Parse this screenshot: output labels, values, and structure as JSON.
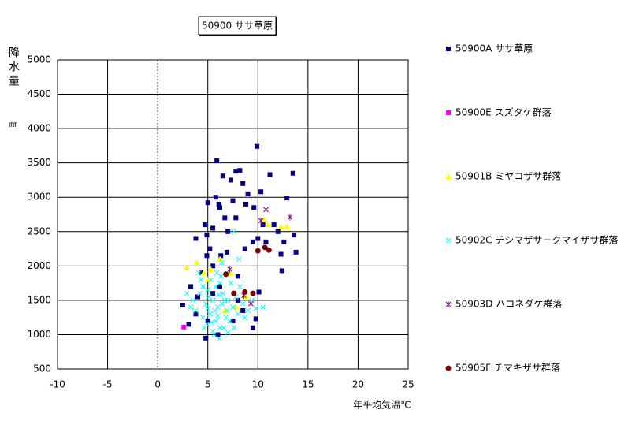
{
  "chart_data": {
    "type": "scatter",
    "title": "50900 ササ草原",
    "y_label": "降水量",
    "y_unit": "㎜",
    "x_label": "年平均気温℃",
    "xlim": [
      -10,
      25
    ],
    "xticks": [
      -10,
      -5,
      0,
      5,
      10,
      15,
      20,
      25
    ],
    "ylim": [
      500,
      5000
    ],
    "yticks": [
      500,
      1000,
      1500,
      2000,
      2500,
      3000,
      3500,
      4000,
      4500,
      5000
    ],
    "grid": true,
    "legend": "right",
    "series": [
      {
        "name": "50900A ササ草原",
        "color": "#000080",
        "marker": "square",
        "x": [
          13.5,
          11.2,
          12.9,
          9.9,
          5.9,
          7.8,
          8.2,
          6.5,
          7.3,
          8.5,
          9.0,
          10.3,
          5.0,
          6.1,
          7.5,
          8.8,
          9.6,
          4.7,
          5.5,
          6.7,
          7.8,
          10.5,
          11.6,
          12.0,
          13.6,
          12.6,
          13.8,
          12.3,
          12.4,
          10.0,
          10.8,
          9.5,
          8.7,
          4.9,
          3.8,
          5.2,
          4.9,
          6.3,
          6.9,
          5.5,
          4.4,
          6.2,
          5.5,
          4.0,
          2.5,
          3.8,
          5.0,
          6.0,
          4.8,
          7.5,
          8.5,
          9.5,
          9.8,
          8.0,
          10.1,
          3.1,
          3.3,
          8.0,
          7.0,
          6.2,
          5.8
        ],
        "values": [
          3350,
          3330,
          2990,
          3740,
          3530,
          3380,
          3390,
          3310,
          3250,
          3200,
          3050,
          3080,
          2920,
          2900,
          2950,
          2900,
          2850,
          2600,
          2550,
          2700,
          2700,
          2600,
          2600,
          2500,
          2450,
          2350,
          2200,
          2170,
          1930,
          2400,
          2350,
          2350,
          2250,
          2450,
          2400,
          2250,
          2150,
          2150,
          2200,
          2000,
          1900,
          1700,
          1600,
          1550,
          1430,
          1300,
          1200,
          1000,
          950,
          1200,
          1350,
          1100,
          1230,
          1500,
          1620,
          1150,
          1700,
          1850,
          2500,
          2850,
          3000
        ]
      },
      {
        "name": "50900E スズタケ群落",
        "color": "#ff00ff",
        "marker": "square",
        "x": [
          2.6
        ],
        "values": [
          1110
        ]
      },
      {
        "name": "50901B ミヤコザサ群落",
        "color": "#ffff00",
        "marker": "triangle",
        "x": [
          2.9,
          3.9,
          4.6,
          5.3,
          6.2,
          7.3,
          10.6,
          11.0,
          12.3,
          12.9,
          5.0,
          7.8,
          8.8,
          6.7
        ],
        "values": [
          1980,
          2050,
          1900,
          1950,
          2100,
          1900,
          2680,
          2600,
          2570,
          2570,
          1800,
          1400,
          1550,
          1350
        ]
      },
      {
        "name": "50902C チシマザサ－クマイザサ群落",
        "color": "#00ffff",
        "marker": "cross",
        "x": [
          4.5,
          5.0,
          5.5,
          6.0,
          5.2,
          4.8,
          5.8,
          6.2,
          5.5,
          6.5,
          7.0,
          7.5,
          8.0,
          6.8,
          5.3,
          4.2,
          3.5,
          3.8,
          4.5,
          4.9,
          5.6,
          6.1,
          6.6,
          7.2,
          7.8,
          8.5,
          9.0,
          9.4,
          8.2,
          7.3,
          6.3,
          5.9,
          4.3,
          3.3,
          2.9,
          5.1,
          5.7,
          6.4,
          6.9,
          7.6,
          8.7,
          9.8,
          10.5,
          4.6,
          5.4,
          6.0,
          6.7,
          5.8,
          7.6,
          6.4,
          8.1,
          4.1,
          6.1,
          5.0,
          7.0,
          6.2
        ],
        "values": [
          1700,
          1650,
          1500,
          1400,
          1300,
          1450,
          1200,
          1100,
          1050,
          1600,
          1500,
          1400,
          1300,
          1250,
          1800,
          1600,
          1500,
          1350,
          1250,
          1150,
          1000,
          950,
          1100,
          1200,
          1550,
          1450,
          1350,
          1500,
          1700,
          1750,
          1850,
          1900,
          1800,
          1400,
          1600,
          1550,
          1350,
          1450,
          1350,
          1100,
          1250,
          1380,
          1400,
          1100,
          1180,
          1280,
          1500,
          1700,
          2500,
          2050,
          2100,
          1900,
          1580,
          1380,
          1030,
          1750
        ]
      },
      {
        "name": "50903D ハコネダケ群落",
        "color": "#800080",
        "marker": "star",
        "x": [
          10.8,
          13.2,
          10.3,
          7.2,
          8.6,
          9.3
        ],
        "values": [
          2820,
          2710,
          2660,
          1950,
          1570,
          1450
        ]
      },
      {
        "name": "50905F チマキザサ群落",
        "color": "#800000",
        "marker": "circle",
        "x": [
          10.0,
          10.7,
          11.1,
          7.6,
          8.7,
          9.5,
          6.8
        ],
        "values": [
          2220,
          2270,
          2230,
          1600,
          1620,
          1600,
          1880
        ]
      }
    ]
  }
}
